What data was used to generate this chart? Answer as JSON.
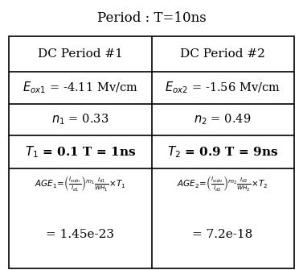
{
  "title": "Period : T=10ns",
  "col1_header": "DC Period #1",
  "col2_header": "DC Period #2",
  "eox1": "$E_{ox1}$ = -4.11 Mv/cm",
  "eox2": "$E_{ox2}$ = -1.56 Mv/cm",
  "n1": "$n_{1}$ = 0.33",
  "n2": "$n_{2}$ = 0.49",
  "T1": "$T_{1}$ = 0.1 T = 1ns",
  "T2": "$T_{2}$ = 0.9 T = 9ns",
  "age1_formula": "$AGE_1\\!=\\!\\left(\\frac{I_{sub_1}}{I_{d1}}\\right)^{m_1}\\frac{I_{d1}}{WH_1}\\!\\times\\! T_1$",
  "age2_formula": "$AGE_2\\!=\\!\\left(\\frac{I_{sub_2}}{I_{d2}}\\right)^{m_2}\\frac{I_{d2}}{WH_2}\\!\\times\\! T_2$",
  "age1_value": "= 1.45e-23",
  "age2_value": "= 7.2e-18",
  "bg_color": "#ffffff",
  "text_color": "#000000",
  "title_fontsize": 12,
  "header_fontsize": 11,
  "cell_fontsize": 10.5,
  "formula_fontsize": 7.5,
  "value_fontsize": 11,
  "lw": 1.2
}
